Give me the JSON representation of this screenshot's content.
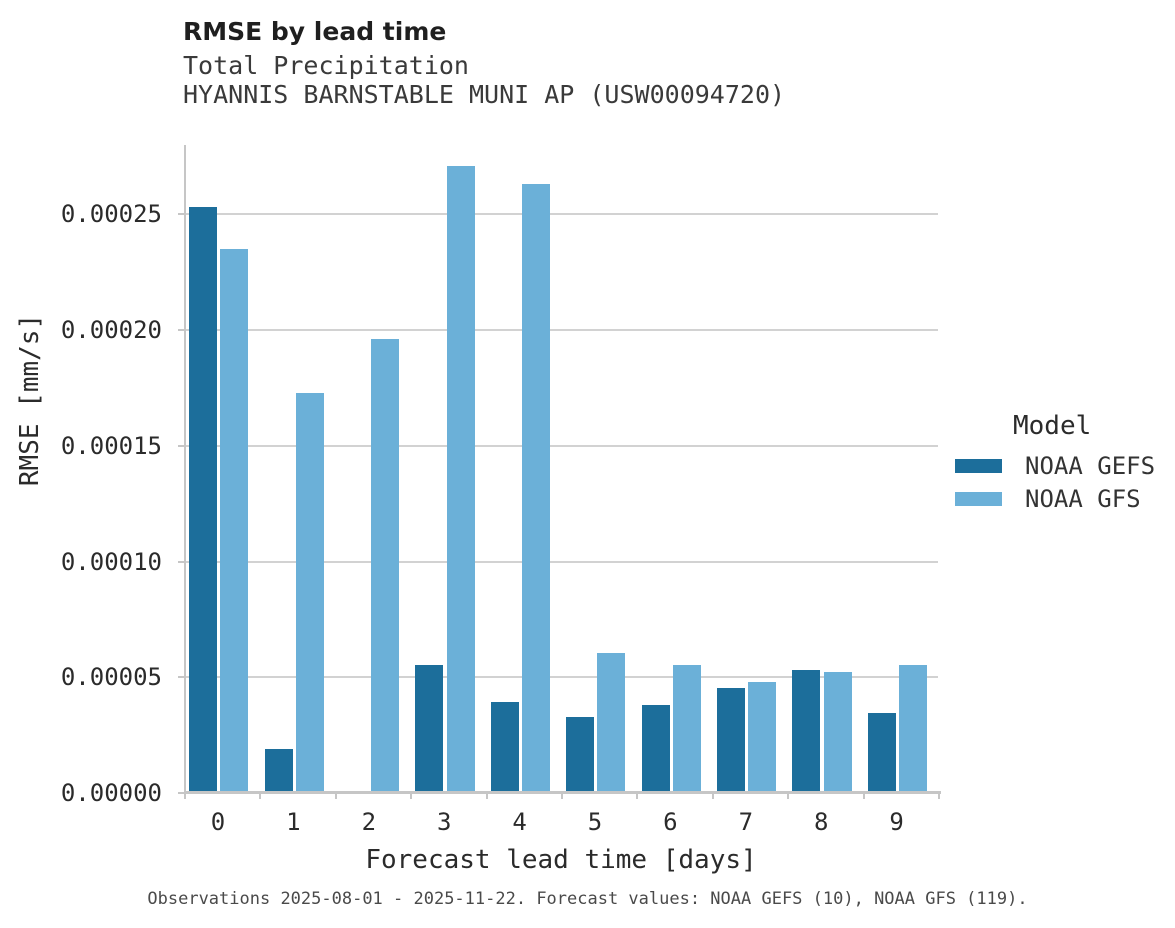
{
  "title": "RMSE by lead time",
  "subtitle_line1": "Total Precipitation",
  "subtitle_line2": "HYANNIS BARNSTABLE MUNI AP (USW00094720)",
  "footer": "Observations 2025-08-01 - 2025-11-22. Forecast values: NOAA GEFS (10), NOAA GFS (119).",
  "legend": {
    "title": "Model",
    "entries": [
      {
        "label": "NOAA GEFS",
        "color": "#1c6e9b"
      },
      {
        "label": "NOAA GFS",
        "color": "#6bb0d8"
      }
    ]
  },
  "colors": {
    "gefs": "#1c6e9b",
    "gfs": "#6bb0d8",
    "grid": "#d2d2d2",
    "axis": "#c6c6c6"
  },
  "chart_data": {
    "type": "bar",
    "title": "RMSE by lead time",
    "subtitle": [
      "Total Precipitation",
      "HYANNIS BARNSTABLE MUNI AP (USW00094720)"
    ],
    "categories": [
      "0",
      "1",
      "2",
      "3",
      "4",
      "5",
      "6",
      "7",
      "8",
      "9"
    ],
    "series": [
      {
        "name": "NOAA GEFS",
        "color": "#1c6e9b",
        "values": [
          0.000253,
          1.91e-05,
          null,
          5.52e-05,
          3.94e-05,
          3.28e-05,
          3.82e-05,
          4.53e-05,
          5.3e-05,
          3.44e-05
        ]
      },
      {
        "name": "NOAA GFS",
        "color": "#6bb0d8",
        "values": [
          0.000235,
          0.000173,
          0.000196,
          0.000271,
          0.000263,
          6.03e-05,
          5.55e-05,
          4.78e-05,
          5.22e-05,
          5.55e-05
        ]
      }
    ],
    "xlabel": "Forecast lead time [days]",
    "ylabel": "RMSE [mm/s]",
    "ylim": [
      0,
      0.00028
    ],
    "yticks": [
      0,
      5e-05,
      0.0001,
      0.00015,
      0.0002,
      0.00025
    ],
    "ytick_labels": [
      "0.00000",
      "0.00005",
      "0.00010",
      "0.00015",
      "0.00020",
      "0.00025"
    ],
    "grid": true,
    "legend_title": "Model",
    "legend_position": "right",
    "footnote": "Observations 2025-08-01 - 2025-11-22. Forecast values: NOAA GEFS (10), NOAA GFS (119)."
  }
}
